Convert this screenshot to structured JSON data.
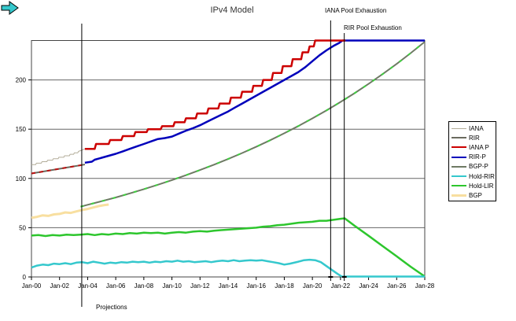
{
  "title": "IPv4 Model",
  "annotations": {
    "iana_exhaustion": "IANA Pool Exhaustion",
    "rir_exhaustion": "RIR Pool Exhaustion",
    "projections": "Projections"
  },
  "colors": {
    "background": "#ffffff",
    "grid": "#666666",
    "border": "#444444",
    "marker_line": "#000000",
    "projections_arrow_fill": "#35c8cd"
  },
  "chart_data": {
    "type": "line",
    "title": "IPv4 Model",
    "xlabel": "",
    "ylabel": "",
    "grid": true,
    "legend_position": "right",
    "xlim": [
      2000,
      2028
    ],
    "ylim": [
      0,
      240
    ],
    "x_tick_labels": [
      "Jan-00",
      "Jan-02",
      "Jan-04",
      "Jan-06",
      "Jan-08",
      "Jan-10",
      "Jan-12",
      "Jan-14",
      "Jan-16",
      "Jan-18",
      "Jan-20",
      "Jan-22",
      "Jan-24",
      "Jan-26",
      "Jan-28"
    ],
    "x_tick_years": [
      2000,
      2002,
      2004,
      2006,
      2008,
      2010,
      2012,
      2014,
      2016,
      2018,
      2020,
      2022,
      2024,
      2026,
      2028
    ],
    "y_ticks": [
      0,
      50,
      100,
      150,
      200
    ],
    "vertical_markers": [
      {
        "id": "projections",
        "x": 2003.58,
        "label": "Projections"
      },
      {
        "id": "iana-exhaustion",
        "x": 2021.3,
        "label": "IANA Pool Exhaustion",
        "foot": true
      },
      {
        "id": "rir-exhaustion",
        "x": 2022.27,
        "label": "RIR Pool Exhaustion",
        "foot": true
      }
    ],
    "series": [
      {
        "name": "IANA",
        "color": "#b3ad9a",
        "width": 1,
        "z": 3,
        "points": [
          [
            2000,
            114
          ],
          [
            2000.3,
            114
          ],
          [
            2000.35,
            115.5
          ],
          [
            2000.7,
            115.5
          ],
          [
            2000.75,
            117
          ],
          [
            2001.1,
            117
          ],
          [
            2001.15,
            118.5
          ],
          [
            2001.5,
            118.5
          ],
          [
            2001.55,
            120
          ],
          [
            2001.9,
            120
          ],
          [
            2001.95,
            121.5
          ],
          [
            2002.3,
            121.5
          ],
          [
            2002.35,
            123
          ],
          [
            2002.7,
            123
          ],
          [
            2002.75,
            124.5
          ],
          [
            2003,
            124.5
          ],
          [
            2003.05,
            126
          ],
          [
            2003.3,
            126
          ],
          [
            2003.35,
            127.5
          ],
          [
            2003.55,
            128.5
          ],
          [
            2003.8,
            130
          ]
        ]
      },
      {
        "name": "RIR",
        "color": "#6b6b5f",
        "width": 2,
        "z": 4,
        "overlay_color": "#bb1111",
        "overlay_dash": "5,5",
        "points": [
          [
            2000,
            105
          ],
          [
            2000.5,
            106.2
          ],
          [
            2001,
            107.4
          ],
          [
            2001.5,
            108.6
          ],
          [
            2002,
            109.8
          ],
          [
            2002.5,
            111
          ],
          [
            2003,
            112.2
          ],
          [
            2003.4,
            113.2
          ],
          [
            2003.8,
            114.2
          ]
        ]
      },
      {
        "name": "IANA P",
        "color": "#cc0000",
        "width": 2.5,
        "z": 7,
        "points": [
          [
            2003.8,
            130
          ],
          [
            2004.5,
            130
          ],
          [
            2004.6,
            135
          ],
          [
            2005.5,
            135
          ],
          [
            2005.6,
            139
          ],
          [
            2006.4,
            139
          ],
          [
            2006.5,
            143
          ],
          [
            2007.3,
            143
          ],
          [
            2007.4,
            147
          ],
          [
            2008.2,
            147
          ],
          [
            2008.3,
            150
          ],
          [
            2009.2,
            150
          ],
          [
            2009.3,
            153
          ],
          [
            2010.1,
            153
          ],
          [
            2010.2,
            157
          ],
          [
            2010.9,
            157
          ],
          [
            2011,
            161
          ],
          [
            2011.7,
            161
          ],
          [
            2011.8,
            166
          ],
          [
            2012.5,
            166
          ],
          [
            2012.6,
            171
          ],
          [
            2013.3,
            171
          ],
          [
            2013.4,
            176
          ],
          [
            2014.1,
            176
          ],
          [
            2014.2,
            182
          ],
          [
            2014.9,
            182
          ],
          [
            2015,
            188
          ],
          [
            2015.7,
            188
          ],
          [
            2015.8,
            194
          ],
          [
            2016.4,
            194
          ],
          [
            2016.5,
            200
          ],
          [
            2017.1,
            200
          ],
          [
            2017.2,
            207
          ],
          [
            2017.8,
            207
          ],
          [
            2017.9,
            214
          ],
          [
            2018.5,
            214
          ],
          [
            2018.6,
            221
          ],
          [
            2019.2,
            221
          ],
          [
            2019.3,
            228
          ],
          [
            2019.7,
            228
          ],
          [
            2019.8,
            234
          ],
          [
            2020.1,
            234
          ],
          [
            2020.2,
            240
          ],
          [
            2022.35,
            240
          ]
        ]
      },
      {
        "name": "RIR-P",
        "color": "#0000bb",
        "width": 2.5,
        "z": 6,
        "points": [
          [
            2003.8,
            116
          ],
          [
            2004.3,
            117
          ],
          [
            2004.5,
            119
          ],
          [
            2005,
            121
          ],
          [
            2005.5,
            123
          ],
          [
            2006,
            125
          ],
          [
            2006.5,
            127.5
          ],
          [
            2007,
            130
          ],
          [
            2007.5,
            132.5
          ],
          [
            2008,
            135
          ],
          [
            2008.5,
            137.5
          ],
          [
            2009,
            140
          ],
          [
            2009.5,
            141
          ],
          [
            2010,
            142.5
          ],
          [
            2010.5,
            145.5
          ],
          [
            2011,
            148.5
          ],
          [
            2011.5,
            151
          ],
          [
            2012,
            154
          ],
          [
            2012.5,
            157.5
          ],
          [
            2013,
            161
          ],
          [
            2013.5,
            164.5
          ],
          [
            2014,
            168
          ],
          [
            2014.5,
            172
          ],
          [
            2015,
            176
          ],
          [
            2015.5,
            180
          ],
          [
            2016,
            184
          ],
          [
            2016.5,
            188
          ],
          [
            2017,
            192
          ],
          [
            2017.5,
            196
          ],
          [
            2018,
            200
          ],
          [
            2018.5,
            204
          ],
          [
            2019,
            208
          ],
          [
            2019.5,
            213
          ],
          [
            2020,
            219
          ],
          [
            2020.5,
            225
          ],
          [
            2021,
            230
          ],
          [
            2021.5,
            234.5
          ],
          [
            2021.9,
            237.5
          ],
          [
            2022.15,
            240
          ],
          [
            2028,
            240
          ]
        ]
      },
      {
        "name": "BGP-P",
        "color": "#6e7a64",
        "width": 2,
        "z": 2,
        "overlay_color": "#3fcf3f",
        "overlay_dash": "4,10",
        "points": [
          [
            2003.5,
            71.3
          ],
          [
            2004,
            73.2
          ],
          [
            2005,
            76.9
          ],
          [
            2006,
            80.7
          ],
          [
            2007,
            84.8
          ],
          [
            2008,
            89.1
          ],
          [
            2009,
            93.6
          ],
          [
            2010,
            98.3
          ],
          [
            2011,
            103.3
          ],
          [
            2012,
            108.5
          ],
          [
            2013,
            114
          ],
          [
            2014,
            119.7
          ],
          [
            2015,
            125.8
          ],
          [
            2016,
            132.1
          ],
          [
            2017,
            138.8
          ],
          [
            2018,
            145.8
          ],
          [
            2019,
            153.2
          ],
          [
            2020,
            160.9
          ],
          [
            2021,
            169
          ],
          [
            2022,
            177.6
          ],
          [
            2023,
            186.5
          ],
          [
            2024,
            196
          ],
          [
            2025,
            205.9
          ],
          [
            2026,
            216.3
          ],
          [
            2027,
            227.2
          ],
          [
            2028,
            238.7
          ]
        ]
      },
      {
        "name": "Hold-RIR",
        "color": "#35c8cd",
        "width": 2.5,
        "z": 9,
        "points": [
          [
            2000,
            9.5
          ],
          [
            2000.4,
            11.5
          ],
          [
            2000.8,
            12.5
          ],
          [
            2001.2,
            12
          ],
          [
            2001.6,
            13.5
          ],
          [
            2002,
            13
          ],
          [
            2002.4,
            14
          ],
          [
            2002.8,
            13
          ],
          [
            2003.2,
            14.5
          ],
          [
            2003.6,
            15
          ],
          [
            2004,
            14
          ],
          [
            2004.4,
            15.5
          ],
          [
            2004.8,
            14.5
          ],
          [
            2005.2,
            13.5
          ],
          [
            2005.6,
            14.5
          ],
          [
            2006,
            14
          ],
          [
            2006.4,
            15
          ],
          [
            2006.8,
            14.5
          ],
          [
            2007.2,
            15.5
          ],
          [
            2007.6,
            15
          ],
          [
            2008,
            15.5
          ],
          [
            2008.4,
            14.5
          ],
          [
            2008.8,
            15.5
          ],
          [
            2009.2,
            15
          ],
          [
            2009.6,
            16
          ],
          [
            2010,
            15.5
          ],
          [
            2010.4,
            16.5
          ],
          [
            2010.8,
            15.5
          ],
          [
            2011.2,
            16
          ],
          [
            2011.6,
            15
          ],
          [
            2012,
            15.5
          ],
          [
            2012.4,
            16
          ],
          [
            2012.8,
            15
          ],
          [
            2013.2,
            16
          ],
          [
            2013.6,
            16.5
          ],
          [
            2014,
            16
          ],
          [
            2014.4,
            17
          ],
          [
            2014.8,
            16
          ],
          [
            2015.2,
            16.5
          ],
          [
            2015.6,
            17
          ],
          [
            2016,
            16.5
          ],
          [
            2016.4,
            17
          ],
          [
            2016.8,
            16
          ],
          [
            2017.2,
            15
          ],
          [
            2017.6,
            14
          ],
          [
            2018,
            12.5
          ],
          [
            2018.4,
            13.5
          ],
          [
            2019,
            15.5
          ],
          [
            2019.4,
            17
          ],
          [
            2019.8,
            17.5
          ],
          [
            2020.2,
            17
          ],
          [
            2020.6,
            15
          ],
          [
            2021,
            11
          ],
          [
            2021.4,
            7
          ],
          [
            2021.8,
            3
          ],
          [
            2022.1,
            0.4
          ],
          [
            2028,
            0.4
          ]
        ]
      },
      {
        "name": "Hold-LIR",
        "color": "#2dc62d",
        "width": 2.5,
        "z": 8,
        "points": [
          [
            2000,
            42
          ],
          [
            2000.5,
            42.5
          ],
          [
            2001,
            41.5
          ],
          [
            2001.5,
            42.5
          ],
          [
            2002,
            42
          ],
          [
            2002.5,
            43
          ],
          [
            2003,
            42.5
          ],
          [
            2003.5,
            43
          ],
          [
            2004,
            43.5
          ],
          [
            2004.5,
            42.5
          ],
          [
            2005,
            43.5
          ],
          [
            2005.5,
            43
          ],
          [
            2006,
            44
          ],
          [
            2006.5,
            43.5
          ],
          [
            2007,
            44.5
          ],
          [
            2007.5,
            44
          ],
          [
            2008,
            45
          ],
          [
            2008.5,
            44.5
          ],
          [
            2009,
            45
          ],
          [
            2009.5,
            44
          ],
          [
            2010,
            45
          ],
          [
            2010.5,
            45.5
          ],
          [
            2011,
            45
          ],
          [
            2011.5,
            46
          ],
          [
            2012,
            46.5
          ],
          [
            2012.5,
            46
          ],
          [
            2013,
            47
          ],
          [
            2013.5,
            47.5
          ],
          [
            2014,
            48
          ],
          [
            2014.5,
            48.5
          ],
          [
            2015,
            49
          ],
          [
            2015.5,
            49.5
          ],
          [
            2016,
            50
          ],
          [
            2016.5,
            51
          ],
          [
            2017,
            51.5
          ],
          [
            2017.5,
            52.5
          ],
          [
            2018,
            53
          ],
          [
            2018.5,
            54
          ],
          [
            2019,
            55
          ],
          [
            2019.5,
            55.5
          ],
          [
            2020,
            56
          ],
          [
            2020.5,
            57
          ],
          [
            2021,
            57
          ],
          [
            2021.5,
            58
          ],
          [
            2022,
            59
          ],
          [
            2022.3,
            59.5
          ],
          [
            2023,
            52
          ],
          [
            2024,
            41.8
          ],
          [
            2025,
            31.3
          ],
          [
            2026,
            20.9
          ],
          [
            2027,
            10.4
          ],
          [
            2028,
            0.5
          ]
        ]
      },
      {
        "name": "BGP",
        "color": "#f8dfa0",
        "width": 3,
        "z": 1,
        "points": [
          [
            2000,
            60
          ],
          [
            2000.4,
            61
          ],
          [
            2000.8,
            62.5
          ],
          [
            2001.2,
            62
          ],
          [
            2001.6,
            63.5
          ],
          [
            2002,
            64
          ],
          [
            2002.4,
            65.5
          ],
          [
            2002.8,
            65
          ],
          [
            2003.2,
            66.5
          ],
          [
            2003.6,
            68
          ],
          [
            2004,
            69
          ],
          [
            2004.4,
            70.5
          ],
          [
            2004.8,
            72
          ],
          [
            2005.2,
            73
          ],
          [
            2005.5,
            73.5
          ]
        ]
      }
    ]
  }
}
